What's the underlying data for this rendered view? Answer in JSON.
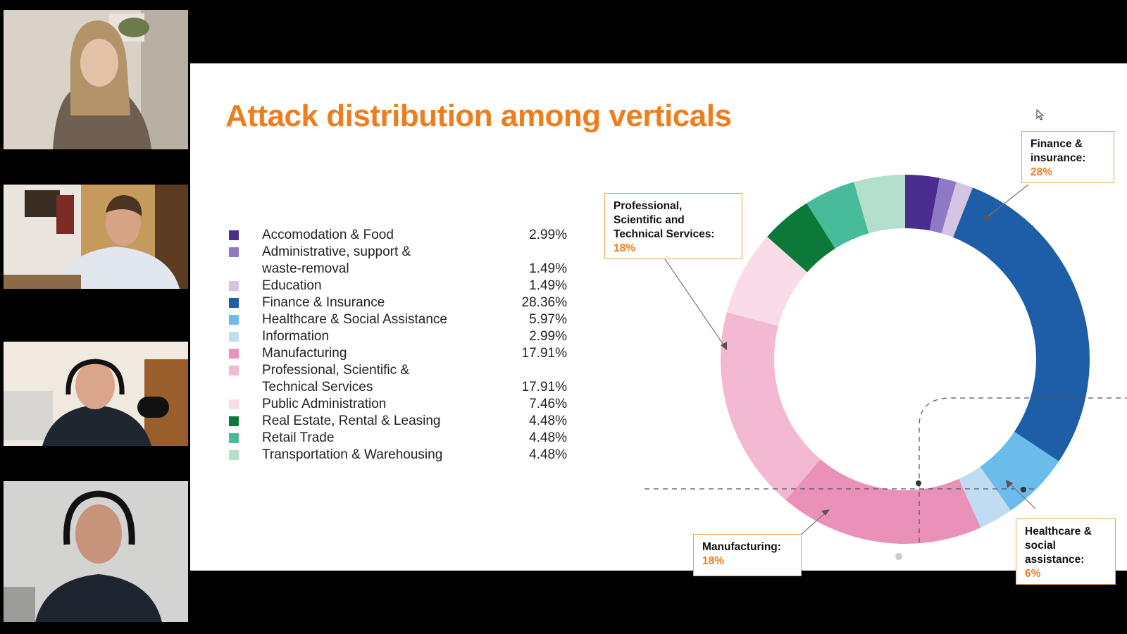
{
  "slide": {
    "title": "Attack distribution among verticals",
    "legend": [
      {
        "lines": [
          "Accomodation & Food"
        ],
        "pct": "2.99%",
        "color": "#4b2d8f"
      },
      {
        "lines": [
          "Administrative, support &",
          "waste-removal"
        ],
        "pct": "1.49%",
        "color": "#8f78c4"
      },
      {
        "lines": [
          "Education"
        ],
        "pct": "1.49%",
        "color": "#d5c5e3"
      },
      {
        "lines": [
          "Finance & Insurance"
        ],
        "pct": "28.36%",
        "color": "#1e5da8"
      },
      {
        "lines": [
          "Healthcare & Social Assistance"
        ],
        "pct": "5.97%",
        "color": "#6bbcea"
      },
      {
        "lines": [
          "Information"
        ],
        "pct": "2.99%",
        "color": "#bfdcf3"
      },
      {
        "lines": [
          "Manufacturing"
        ],
        "pct": "17.91%",
        "color": "#ea91b9"
      },
      {
        "lines": [
          "Professional, Scientific &",
          "Technical Services"
        ],
        "pct": "17.91%",
        "color": "#f3b8d2"
      },
      {
        "lines": [
          "Public Administration"
        ],
        "pct": "7.46%",
        "color": "#fadbe8"
      },
      {
        "lines": [
          "Real Estate, Rental & Leasing"
        ],
        "pct": "4.48%",
        "color": "#0b7a39"
      },
      {
        "lines": [
          "Retail Trade"
        ],
        "pct": "4.48%",
        "color": "#47bb9a"
      },
      {
        "lines": [
          "Transportation & Warehousing"
        ],
        "pct": "4.48%",
        "color": "#b3dfcc"
      }
    ],
    "callouts": {
      "finance": {
        "label_lines": [
          "Finance &",
          "insurance:"
        ],
        "pct": "28%"
      },
      "professional": {
        "label_lines": [
          "Professional,",
          "Scientific and",
          "Technical Services:"
        ],
        "pct": "18%"
      },
      "manufacturing": {
        "label_lines": [
          "Manufacturing:"
        ],
        "pct": "18%"
      },
      "healthcare": {
        "label_lines": [
          "Healthcare &",
          "social",
          "assistance:"
        ],
        "pct": "6%"
      }
    }
  },
  "chart_data": {
    "type": "pie",
    "donut": true,
    "categories": [
      "Accomodation & Food",
      "Administrative, support & waste-removal",
      "Education",
      "Finance & Insurance",
      "Healthcare & Social Assistance",
      "Information",
      "Manufacturing",
      "Professional, Scientific & Technical Services",
      "Public Administration",
      "Real Estate, Rental & Leasing",
      "Retail Trade",
      "Transportation & Warehousing"
    ],
    "values": [
      2.99,
      1.49,
      1.49,
      28.36,
      5.97,
      2.99,
      17.91,
      17.91,
      7.46,
      4.48,
      4.48,
      4.48
    ],
    "colors": [
      "#4b2d8f",
      "#8f78c4",
      "#d5c5e3",
      "#1e5da8",
      "#6bbcea",
      "#bfdcf3",
      "#ea91b9",
      "#f3b8d2",
      "#fadbe8",
      "#0b7a39",
      "#47bb9a",
      "#b3dfcc"
    ]
  }
}
